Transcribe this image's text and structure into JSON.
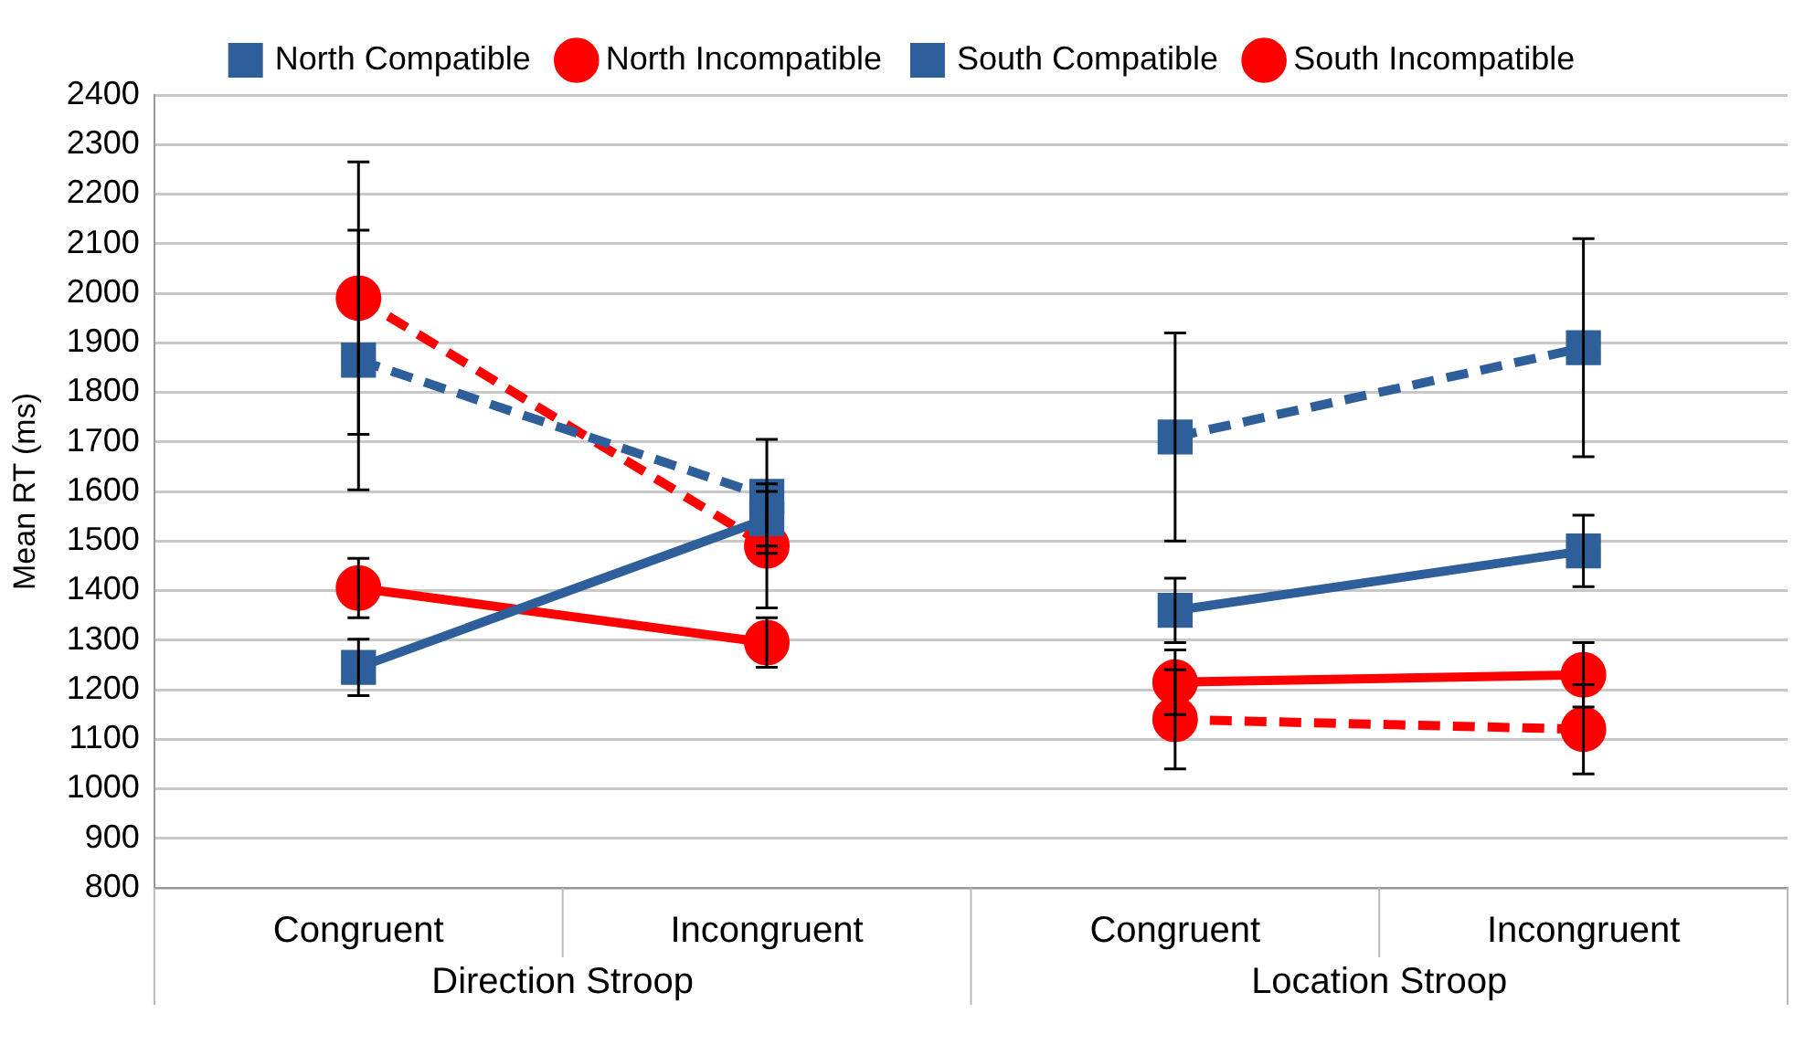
{
  "chart_data": {
    "type": "line",
    "ylabel": "Mean RT (ms)",
    "categories": [
      "Congruent",
      "Incongruent",
      "Congruent",
      "Incongruent"
    ],
    "annotations": [
      "Direction Stroop",
      "Location Stroop"
    ],
    "ylim": [
      800,
      2400
    ],
    "yticks": [
      800,
      900,
      1000,
      1100,
      1200,
      1300,
      1400,
      1500,
      1600,
      1700,
      1800,
      1900,
      2000,
      2100,
      2200,
      2300,
      2400
    ],
    "grid": "y",
    "legend": "top",
    "series": [
      {
        "name": "North Compatible",
        "color": "#2e5f9a",
        "marker": "square",
        "line_style": "solid",
        "values": [
          1245,
          1545,
          1360,
          1480
        ],
        "errors": [
          57,
          55,
          65,
          72
        ]
      },
      {
        "name": "North Incompatible",
        "color": "#ff0000",
        "marker": "circle",
        "line_style": "solid",
        "values": [
          1405,
          1295,
          1215,
          1230
        ],
        "errors": [
          60,
          50,
          65,
          65
        ]
      },
      {
        "name": "South Compatible",
        "color": "#2e5f9a",
        "marker": "square",
        "line_style": "dashed",
        "values": [
          1865,
          1590,
          1710,
          1890
        ],
        "errors": [
          262,
          115,
          210,
          220
        ]
      },
      {
        "name": "South Incompatible",
        "color": "#ff0000",
        "marker": "circle",
        "line_style": "dashed",
        "values": [
          1990,
          1490,
          1140,
          1120
        ],
        "errors": [
          275,
          125,
          100,
          90
        ]
      }
    ]
  }
}
